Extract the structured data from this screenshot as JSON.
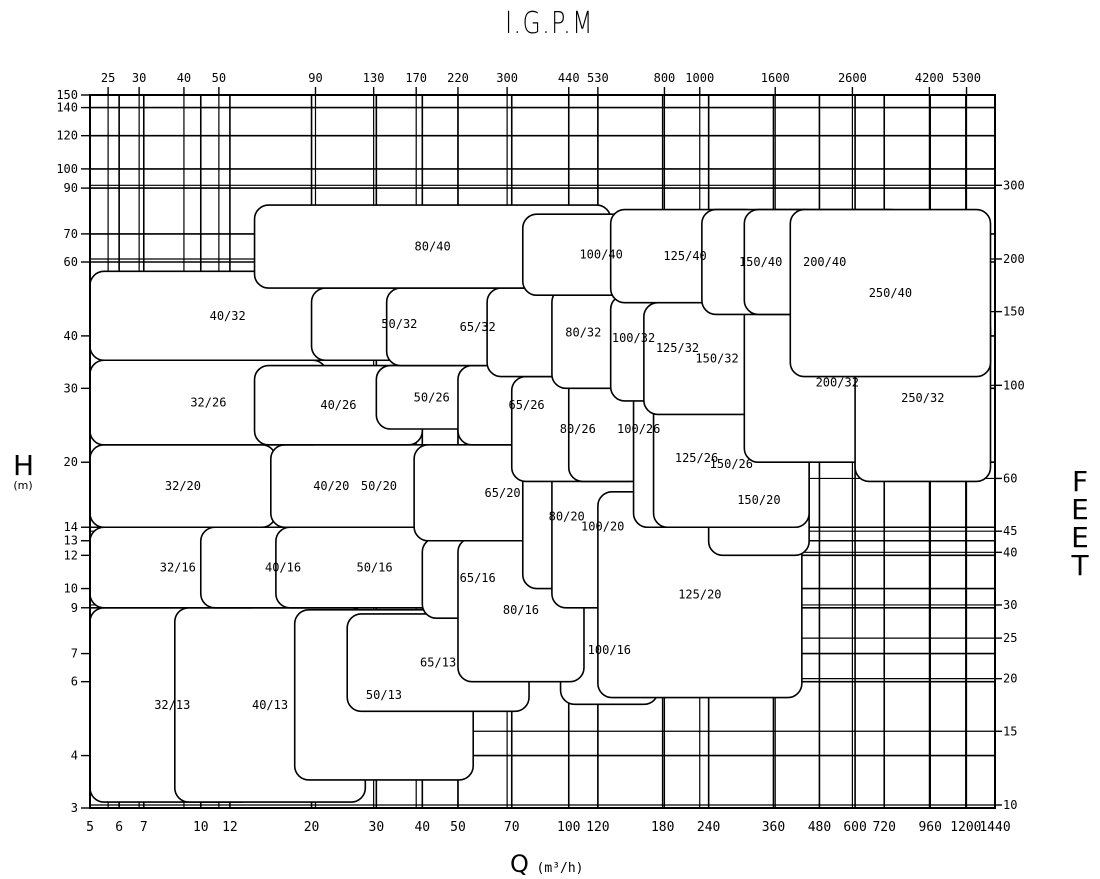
{
  "chart_data": {
    "type": "area",
    "title": "I.G.P.M",
    "xlabel": "Q",
    "xlabel_unit": "(m³/h)",
    "ylabel": "H",
    "ylabel_unit": "(m)",
    "ylabel_right": "FEET",
    "xscale": "log",
    "yscale": "log",
    "xlim": [
      5,
      1440
    ],
    "ylim": [
      3,
      150
    ],
    "grid": true,
    "x_ticks": [
      5,
      6,
      7,
      10,
      12,
      20,
      30,
      40,
      50,
      70,
      100,
      120,
      180,
      240,
      360,
      480,
      600,
      720,
      960,
      1200,
      1440
    ],
    "y_ticks": [
      3,
      4,
      6,
      7,
      9,
      10,
      12,
      13,
      14,
      20,
      30,
      40,
      60,
      70,
      90,
      100,
      120,
      140,
      150
    ],
    "top_ticks": [
      {
        "label": "25",
        "q": 5.6
      },
      {
        "label": "30",
        "q": 6.8
      },
      {
        "label": "40",
        "q": 9.0
      },
      {
        "label": "50",
        "q": 11.2
      },
      {
        "label": "90",
        "q": 20.5
      },
      {
        "label": "130",
        "q": 29.5
      },
      {
        "label": "170",
        "q": 38.5
      },
      {
        "label": "220",
        "q": 50
      },
      {
        "label": "300",
        "q": 68
      },
      {
        "label": "440",
        "q": 100
      },
      {
        "label": "530",
        "q": 120
      },
      {
        "label": "800",
        "q": 182
      },
      {
        "label": "1000",
        "q": 227
      },
      {
        "label": "1600",
        "q": 364
      },
      {
        "label": "2600",
        "q": 590
      },
      {
        "label": "4200",
        "q": 955
      },
      {
        "label": "5300",
        "q": 1205
      }
    ],
    "right_ticks": [
      {
        "label": "300",
        "h": 91.4
      },
      {
        "label": "200",
        "h": 61
      },
      {
        "label": "150",
        "h": 45.7
      },
      {
        "label": "100",
        "h": 30.5
      },
      {
        "label": "60",
        "h": 18.3
      },
      {
        "label": "45",
        "h": 13.7
      },
      {
        "label": "40",
        "h": 12.2
      },
      {
        "label": "30",
        "h": 9.14
      },
      {
        "label": "25",
        "h": 7.62
      },
      {
        "label": "20",
        "h": 6.1
      },
      {
        "label": "15",
        "h": 4.57
      },
      {
        "label": "10",
        "h": 3.05
      }
    ],
    "series": [
      {
        "name": "32/13",
        "q_min": 5,
        "q_max": 14,
        "h_min": 3.1,
        "h_max": 9
      },
      {
        "name": "40/13",
        "q_min": 8.5,
        "q_max": 28,
        "h_min": 3.1,
        "h_max": 9
      },
      {
        "name": "50/13",
        "q_min": 18,
        "q_max": 55,
        "h_min": 3.5,
        "h_max": 8.9
      },
      {
        "name": "65/13",
        "q_min": 25,
        "q_max": 78,
        "h_min": 5.1,
        "h_max": 8.7
      },
      {
        "name": "100/16",
        "q_min": 95,
        "q_max": 175,
        "h_min": 5.3,
        "h_max": 9.6
      },
      {
        "name": "32/16",
        "q_min": 5,
        "q_max": 15,
        "h_min": 9,
        "h_max": 14
      },
      {
        "name": "40/16",
        "q_min": 10,
        "q_max": 28,
        "h_min": 9,
        "h_max": 14
      },
      {
        "name": "50/16",
        "q_min": 16,
        "q_max": 55,
        "h_min": 9,
        "h_max": 14
      },
      {
        "name": "65/16",
        "q_min": 40,
        "q_max": 80,
        "h_min": 8.5,
        "h_max": 13.2
      },
      {
        "name": "80/16",
        "q_min": 50,
        "q_max": 110,
        "h_min": 6,
        "h_max": 13.2
      },
      {
        "name": "32/20",
        "q_min": 5,
        "q_max": 16,
        "h_min": 14,
        "h_max": 22
      },
      {
        "name": "40/20",
        "q_min": 16,
        "q_max": 32,
        "h_min": 14,
        "h_max": 22
      },
      {
        "name": "50/20",
        "q_min": 15.5,
        "q_max": 60,
        "h_min": 14,
        "h_max": 22
      },
      {
        "name": "65/20",
        "q_min": 38,
        "q_max": 115,
        "h_min": 13,
        "h_max": 22
      },
      {
        "name": "80/20",
        "q_min": 75,
        "q_max": 130,
        "h_min": 10,
        "h_max": 22
      },
      {
        "name": "100/20",
        "q_min": 90,
        "q_max": 170,
        "h_min": 9,
        "h_max": 22
      },
      {
        "name": "125/20",
        "q_min": 120,
        "q_max": 430,
        "h_min": 5.5,
        "h_max": 17
      },
      {
        "name": "150/20",
        "q_min": 240,
        "q_max": 450,
        "h_min": 12,
        "h_max": 22
      },
      {
        "name": "32/26",
        "q_min": 5,
        "q_max": 22,
        "h_min": 22,
        "h_max": 35
      },
      {
        "name": "40/26",
        "q_min": 14,
        "q_max": 40,
        "h_min": 22,
        "h_max": 34
      },
      {
        "name": "50/26",
        "q_min": 30,
        "q_max": 60,
        "h_min": 24,
        "h_max": 34
      },
      {
        "name": "65/26",
        "q_min": 50,
        "q_max": 118,
        "h_min": 22,
        "h_max": 34
      },
      {
        "name": "80/26",
        "q_min": 70,
        "q_max": 160,
        "h_min": 18,
        "h_max": 32
      },
      {
        "name": "100/26",
        "q_min": 100,
        "q_max": 240,
        "h_min": 18,
        "h_max": 32
      },
      {
        "name": "125/26",
        "q_min": 150,
        "q_max": 330,
        "h_min": 14,
        "h_max": 30
      },
      {
        "name": "150/26",
        "q_min": 170,
        "q_max": 450,
        "h_min": 14,
        "h_max": 28
      },
      {
        "name": "40/32",
        "q_min": 5,
        "q_max": 28,
        "h_min": 35,
        "h_max": 57
      },
      {
        "name": "50/32",
        "q_min": 20,
        "q_max": 60,
        "h_min": 35,
        "h_max": 52
      },
      {
        "name": "65/32",
        "q_min": 32,
        "q_max": 100,
        "h_min": 34,
        "h_max": 52
      },
      {
        "name": "80/32",
        "q_min": 60,
        "q_max": 200,
        "h_min": 32,
        "h_max": 52
      },
      {
        "name": "100/32",
        "q_min": 90,
        "q_max": 250,
        "h_min": 30,
        "h_max": 52
      },
      {
        "name": "125/32",
        "q_min": 130,
        "q_max": 300,
        "h_min": 28,
        "h_max": 50
      },
      {
        "name": "150/32",
        "q_min": 160,
        "q_max": 400,
        "h_min": 26,
        "h_max": 48
      },
      {
        "name": "200/32",
        "q_min": 300,
        "q_max": 960,
        "h_min": 20,
        "h_max": 48
      },
      {
        "name": "250/32",
        "q_min": 600,
        "q_max": 1400,
        "h_min": 18,
        "h_max": 45
      },
      {
        "name": "80/40",
        "q_min": 14,
        "q_max": 130,
        "h_min": 52,
        "h_max": 82
      },
      {
        "name": "100/40",
        "q_min": 75,
        "q_max": 200,
        "h_min": 50,
        "h_max": 78
      },
      {
        "name": "125/40",
        "q_min": 130,
        "q_max": 330,
        "h_min": 48,
        "h_max": 80
      },
      {
        "name": "150/40",
        "q_min": 230,
        "q_max": 480,
        "h_min": 45,
        "h_max": 80
      },
      {
        "name": "200/40",
        "q_min": 300,
        "q_max": 820,
        "h_min": 45,
        "h_max": 80
      },
      {
        "name": "250/40",
        "q_min": 400,
        "q_max": 1400,
        "h_min": 32,
        "h_max": 80
      }
    ]
  }
}
